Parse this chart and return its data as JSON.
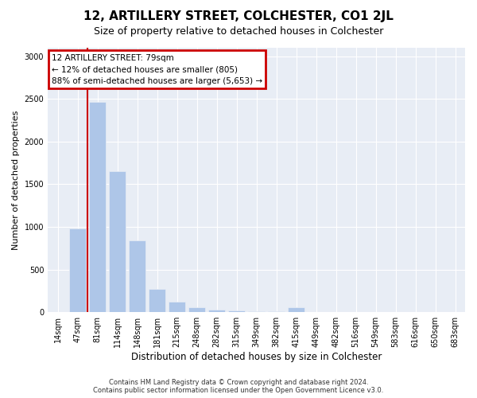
{
  "title": "12, ARTILLERY STREET, COLCHESTER, CO1 2JL",
  "subtitle": "Size of property relative to detached houses in Colchester",
  "xlabel": "Distribution of detached houses by size in Colchester",
  "ylabel": "Number of detached properties",
  "footer_line1": "Contains HM Land Registry data © Crown copyright and database right 2024.",
  "footer_line2": "Contains public sector information licensed under the Open Government Licence v3.0.",
  "annotation_line1": "12 ARTILLERY STREET: 79sqm",
  "annotation_line2": "← 12% of detached houses are smaller (805)",
  "annotation_line3": "88% of semi-detached houses are larger (5,653) →",
  "vline_bar_index": 1,
  "bar_color": "#aec6e8",
  "vline_color": "#cc0000",
  "annotation_box_edgecolor": "#cc0000",
  "fig_background": "#ffffff",
  "ax_background": "#e8edf5",
  "grid_color": "#ffffff",
  "categories": [
    "14sqm",
    "47sqm",
    "81sqm",
    "114sqm",
    "148sqm",
    "181sqm",
    "215sqm",
    "248sqm",
    "282sqm",
    "315sqm",
    "349sqm",
    "382sqm",
    "415sqm",
    "449sqm",
    "482sqm",
    "516sqm",
    "549sqm",
    "583sqm",
    "616sqm",
    "650sqm",
    "683sqm"
  ],
  "values": [
    5,
    980,
    2470,
    1650,
    840,
    270,
    125,
    55,
    30,
    20,
    15,
    8,
    55,
    5,
    3,
    2,
    1,
    1,
    0,
    1,
    0
  ],
  "ylim": [
    0,
    3100
  ],
  "yticks": [
    0,
    500,
    1000,
    1500,
    2000,
    2500,
    3000
  ],
  "title_fontsize": 11,
  "subtitle_fontsize": 9,
  "ylabel_fontsize": 8,
  "xlabel_fontsize": 8.5,
  "tick_fontsize": 7,
  "annotation_fontsize": 7.5,
  "footer_fontsize": 6
}
